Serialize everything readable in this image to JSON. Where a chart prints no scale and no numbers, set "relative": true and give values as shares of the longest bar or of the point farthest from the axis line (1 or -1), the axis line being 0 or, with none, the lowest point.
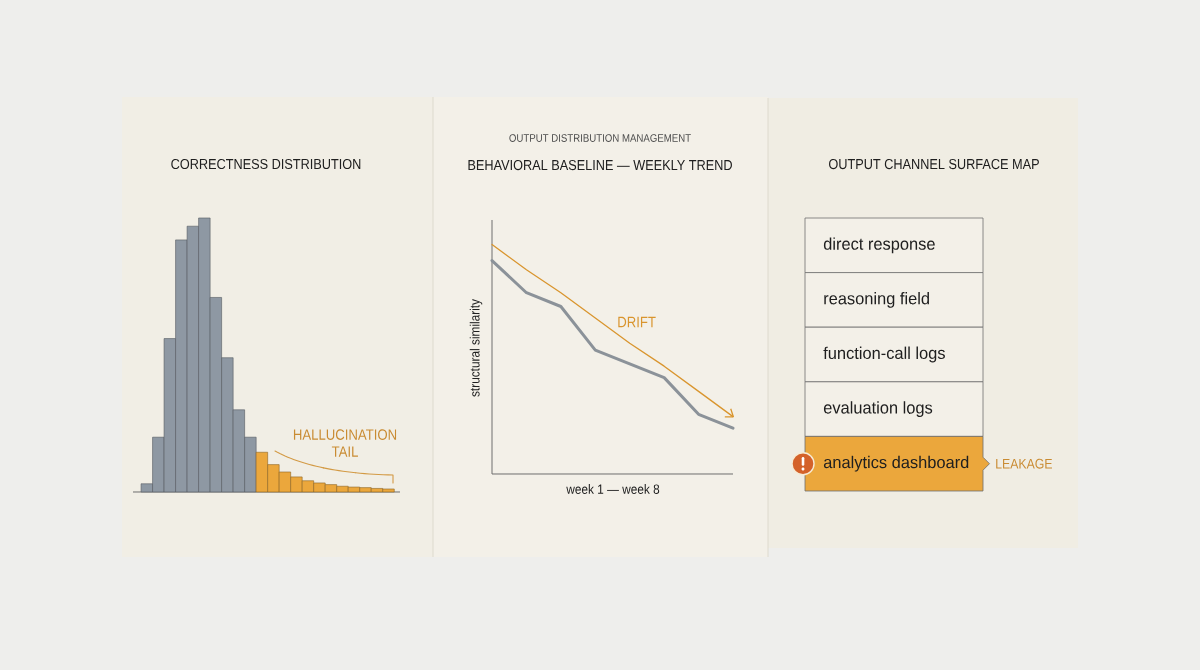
{
  "chart_data": [
    {
      "type": "bar",
      "title": "CORRECTNESS DISTRIBUTION",
      "relative": true,
      "categories": [
        null,
        null,
        null,
        null,
        null,
        null,
        null,
        null,
        null,
        null,
        null,
        null,
        null,
        null,
        null,
        null,
        null,
        null,
        null,
        null,
        null,
        null
      ],
      "values": [
        0.03,
        0.2,
        0.56,
        0.92,
        0.97,
        1,
        0.71,
        0.49,
        0.3,
        0.2,
        0.145,
        0.1,
        0.073,
        0.055,
        0.041,
        0.033,
        0.027,
        0.021,
        0.018,
        0.016,
        0.013,
        0.011
      ],
      "colors": [
        "#8e98a3",
        "#8e98a3",
        "#8e98a3",
        "#8e98a3",
        "#8e98a3",
        "#8e98a3",
        "#8e98a3",
        "#8e98a3",
        "#8e98a3",
        "#8e98a3",
        "#eba73c",
        "#eba73c",
        "#eba73c",
        "#eba73c",
        "#eba73c",
        "#eba73c",
        "#eba73c",
        "#eba73c",
        "#eba73c",
        "#eba73c",
        "#eba73c",
        "#eba73c"
      ],
      "annotations": [
        "HALLUCINATION TAIL"
      ]
    },
    {
      "type": "line",
      "title": "BEHAVIORAL BASELINE — WEEKLY TREND",
      "annotations": [
        "OUTPUT DISTRIBUTION MANAGEMENT"
      ],
      "xlabel": "week 1 — week 8",
      "ylabel": "structural similarity",
      "relative": true,
      "categories": [
        null,
        null,
        null,
        null,
        null,
        null,
        null,
        null
      ],
      "series": [
        {
          "color": "#8b9299",
          "values": [
            0.93,
            0.79,
            0.73,
            0.54,
            0.48,
            0.42,
            0.26,
            0.2
          ]
        },
        {
          "name": "DRIFT",
          "color": "#d9952e",
          "values": [
            1,
            0.89,
            0.79,
            0.68,
            0.57,
            0.47,
            0.36,
            0.25
          ]
        }
      ]
    },
    {
      "type": "other",
      "title": "OUTPUT CHANNEL SURFACE MAP",
      "categories": [
        "direct response",
        "reasoning field",
        "function-call logs",
        "evaluation logs",
        "analytics dashboard"
      ],
      "colors": [
        "#f3f0e8",
        "#f3f0e8",
        "#f3f0e8",
        "#f3f0e8",
        "#eba73c"
      ],
      "annotations": [
        "LEAKAGE"
      ]
    }
  ]
}
